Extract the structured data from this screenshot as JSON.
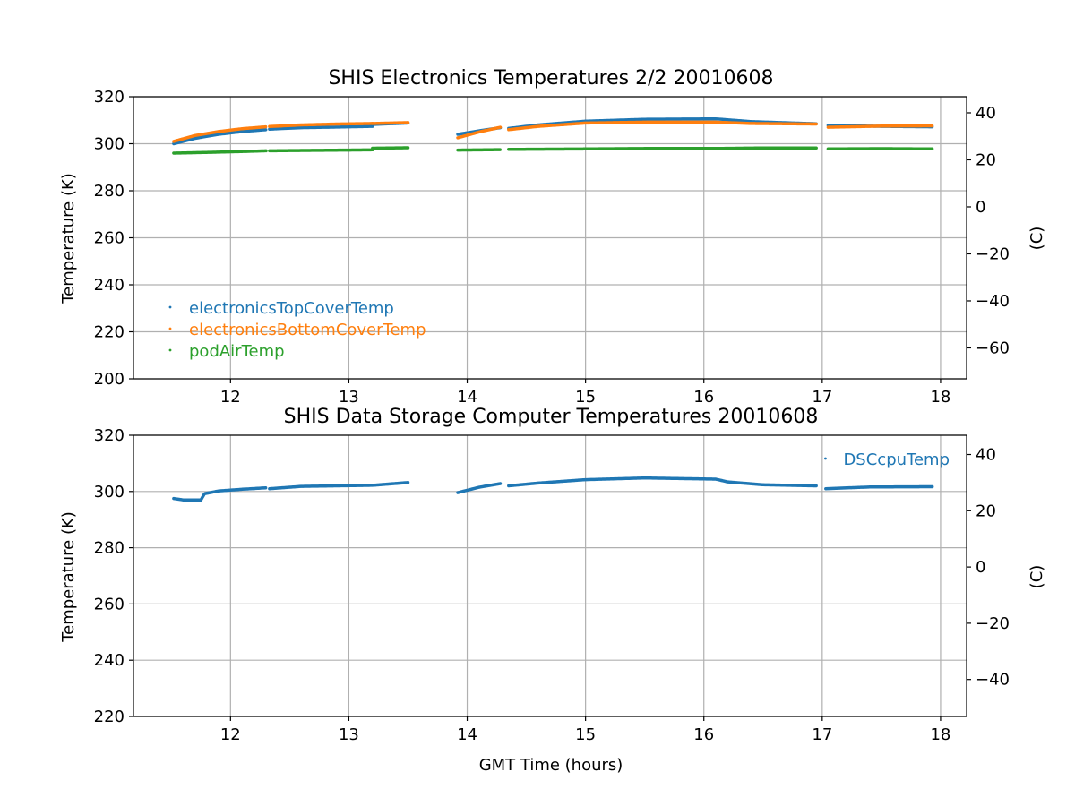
{
  "chart_data": [
    {
      "type": "scatter",
      "title": "SHIS Electronics Temperatures 2/2 20010608",
      "xlabel": "",
      "ylabel": "Temperature (K)",
      "ylabel_right": "(C)",
      "xlim": [
        11.18,
        18.22
      ],
      "ylim": [
        200,
        320
      ],
      "xticks": [
        12,
        13,
        14,
        15,
        16,
        17,
        18
      ],
      "yticks": [
        200,
        220,
        240,
        260,
        280,
        300,
        320
      ],
      "yticks_right": [
        40,
        20,
        0,
        -20,
        -40,
        -60
      ],
      "grid": true,
      "legend_position": "lower-left",
      "series": [
        {
          "name": "electronicsTopCoverTemp",
          "color": "#1f77b4",
          "segments": [
            [
              [
                11.52,
                300.0
              ],
              [
                11.7,
                302.3
              ],
              [
                11.9,
                304.0
              ],
              [
                12.1,
                305.2
              ],
              [
                12.3,
                306.0
              ]
            ],
            [
              [
                12.33,
                306.2
              ],
              [
                12.6,
                306.8
              ],
              [
                12.9,
                307.1
              ],
              [
                13.2,
                307.4
              ]
            ],
            [
              [
                13.2,
                308.2
              ],
              [
                13.5,
                308.8
              ]
            ],
            [
              [
                13.92,
                304.0
              ],
              [
                14.1,
                305.5
              ],
              [
                14.28,
                306.8
              ]
            ],
            [
              [
                14.35,
                306.5
              ],
              [
                14.6,
                308.0
              ],
              [
                15.0,
                309.6
              ],
              [
                15.5,
                310.4
              ],
              [
                16.1,
                310.6
              ],
              [
                16.4,
                309.4
              ],
              [
                16.95,
                308.5
              ]
            ],
            [
              [
                17.05,
                307.8
              ],
              [
                17.5,
                307.4
              ],
              [
                17.93,
                307.2
              ]
            ]
          ]
        },
        {
          "name": "electronicsBottomCoverTemp",
          "color": "#ff7f0e",
          "segments": [
            [
              [
                11.52,
                301.0
              ],
              [
                11.7,
                303.5
              ],
              [
                11.9,
                305.2
              ],
              [
                12.1,
                306.4
              ],
              [
                12.3,
                307.2
              ]
            ],
            [
              [
                12.33,
                307.3
              ],
              [
                12.6,
                308.0
              ],
              [
                12.9,
                308.4
              ],
              [
                13.2,
                308.6
              ]
            ],
            [
              [
                13.2,
                308.6
              ],
              [
                13.5,
                309.0
              ]
            ],
            [
              [
                13.92,
                302.5
              ],
              [
                14.1,
                305.0
              ],
              [
                14.28,
                307.0
              ]
            ],
            [
              [
                14.35,
                306.0
              ],
              [
                14.6,
                307.4
              ],
              [
                15.0,
                308.8
              ],
              [
                15.5,
                309.2
              ],
              [
                16.1,
                309.2
              ],
              [
                16.4,
                308.6
              ],
              [
                16.95,
                308.4
              ]
            ],
            [
              [
                17.05,
                307.0
              ],
              [
                17.5,
                307.5
              ],
              [
                17.93,
                307.6
              ]
            ]
          ]
        },
        {
          "name": "podAirTemp",
          "color": "#2ca02c",
          "segments": [
            [
              [
                11.52,
                296.0
              ],
              [
                11.8,
                296.3
              ],
              [
                12.1,
                296.7
              ],
              [
                12.3,
                297.0
              ]
            ],
            [
              [
                12.33,
                297.0
              ],
              [
                12.7,
                297.2
              ],
              [
                13.0,
                297.3
              ],
              [
                13.2,
                297.4
              ]
            ],
            [
              [
                13.2,
                298.1
              ],
              [
                13.5,
                298.3
              ]
            ],
            [
              [
                13.92,
                297.3
              ],
              [
                14.28,
                297.5
              ]
            ],
            [
              [
                14.35,
                297.6
              ],
              [
                15.0,
                297.8
              ],
              [
                15.5,
                298.0
              ],
              [
                16.1,
                298.0
              ],
              [
                16.5,
                298.2
              ],
              [
                16.95,
                298.2
              ]
            ],
            [
              [
                17.05,
                297.8
              ],
              [
                17.5,
                297.9
              ],
              [
                17.93,
                297.8
              ]
            ]
          ]
        }
      ]
    },
    {
      "type": "scatter",
      "title": "SHIS Data Storage Computer Temperatures 20010608",
      "xlabel": "GMT Time (hours)",
      "ylabel": "Temperature (K)",
      "ylabel_right": "(C)",
      "xlim": [
        11.18,
        18.22
      ],
      "ylim": [
        220,
        320
      ],
      "xticks": [
        12,
        13,
        14,
        15,
        16,
        17,
        18
      ],
      "yticks": [
        220,
        240,
        260,
        280,
        300,
        320
      ],
      "yticks_right": [
        40,
        20,
        0,
        -20,
        -40
      ],
      "grid": true,
      "legend_position": "top-right",
      "series": [
        {
          "name": "DSCcpuTemp",
          "color": "#1f77b4",
          "segments": [
            [
              [
                11.52,
                297.5
              ],
              [
                11.6,
                297.0
              ],
              [
                11.75,
                297.0
              ],
              [
                11.78,
                299.2
              ],
              [
                11.9,
                300.2
              ],
              [
                12.1,
                300.8
              ],
              [
                12.3,
                301.3
              ]
            ],
            [
              [
                12.33,
                301.0
              ],
              [
                12.6,
                301.8
              ],
              [
                12.9,
                302.0
              ],
              [
                13.2,
                302.2
              ],
              [
                13.5,
                303.2
              ]
            ],
            [
              [
                13.92,
                299.6
              ],
              [
                14.1,
                301.5
              ],
              [
                14.28,
                302.8
              ]
            ],
            [
              [
                14.35,
                302.0
              ],
              [
                14.6,
                303.0
              ],
              [
                15.0,
                304.2
              ],
              [
                15.5,
                304.8
              ],
              [
                16.1,
                304.4
              ],
              [
                16.2,
                303.4
              ],
              [
                16.5,
                302.4
              ],
              [
                16.95,
                302.0
              ]
            ],
            [
              [
                17.03,
                301.0
              ],
              [
                17.4,
                301.6
              ],
              [
                17.93,
                301.7
              ]
            ]
          ]
        }
      ]
    }
  ]
}
